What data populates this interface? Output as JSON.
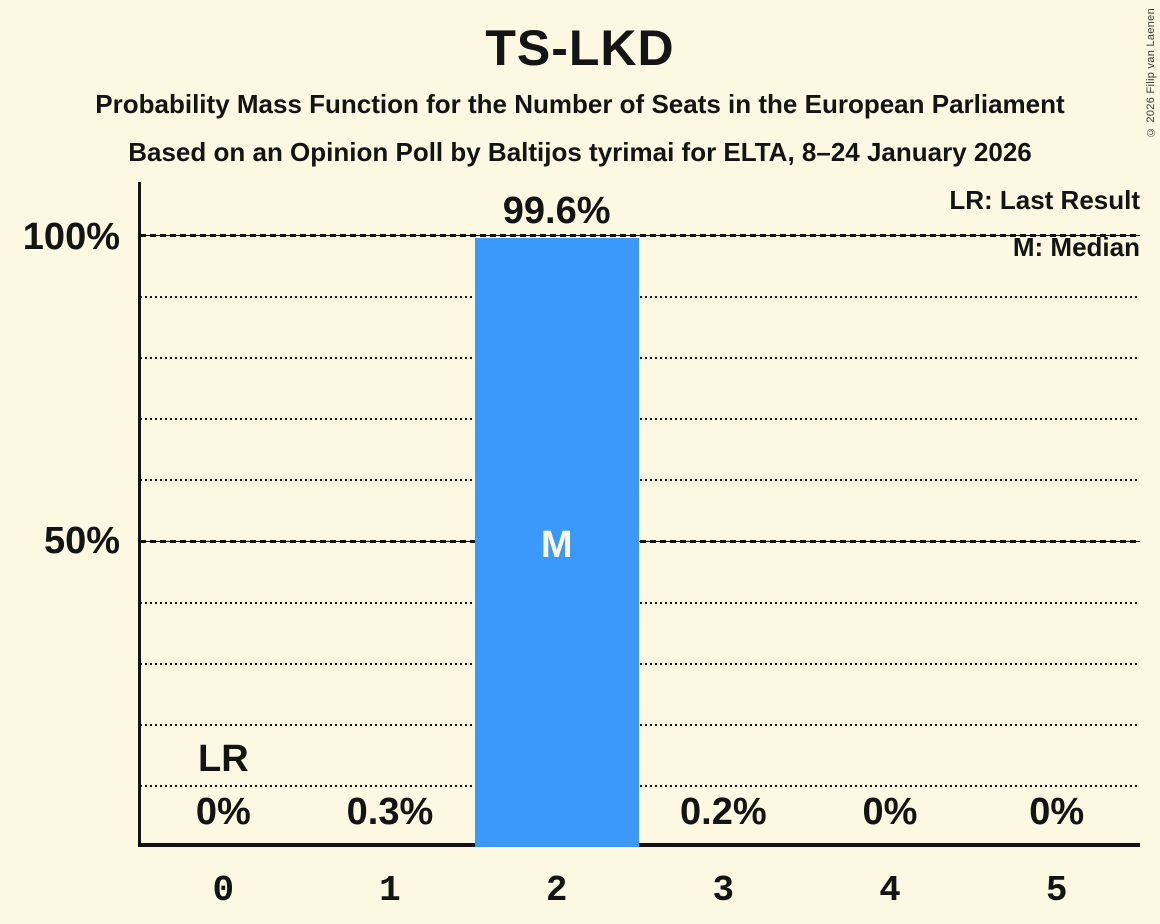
{
  "title": "TS-LKD",
  "subtitle1": "Probability Mass Function for the Number of Seats in the European Parliament",
  "subtitle2": "Based on an Opinion Poll by Baltijos tyrimai for ELTA, 8–24 January 2026",
  "copyright": "© 2026 Filip van Laenen",
  "legend": {
    "last_result": "LR: Last Result",
    "median": "M: Median"
  },
  "y_axis": {
    "labels": [
      {
        "text": "100%",
        "value": 100
      },
      {
        "text": "50%",
        "value": 50
      }
    ]
  },
  "annotations": {
    "last_result_label": "LR",
    "median_label": "M"
  },
  "colors": {
    "background": "#fdf8e2",
    "bar": "#3a99fa",
    "text": "#141414",
    "median_label_text": "#fdf8e2"
  },
  "chart_data": {
    "type": "bar",
    "title": "TS-LKD",
    "xlabel": "",
    "ylabel": "",
    "categories": [
      "0",
      "1",
      "2",
      "3",
      "4",
      "5"
    ],
    "values": [
      0,
      0.3,
      99.6,
      0.2,
      0,
      0
    ],
    "value_labels": [
      "0%",
      "0.3%",
      "99.6%",
      "0.2%",
      "0%",
      "0%"
    ],
    "ylim": [
      0,
      100
    ],
    "gridlines": {
      "minor_step": 10,
      "major_values": [
        50,
        100
      ],
      "style": "dotted-minor dashed-major"
    },
    "median_category": "2",
    "last_result_category": "0",
    "legend_position": "top-right"
  }
}
